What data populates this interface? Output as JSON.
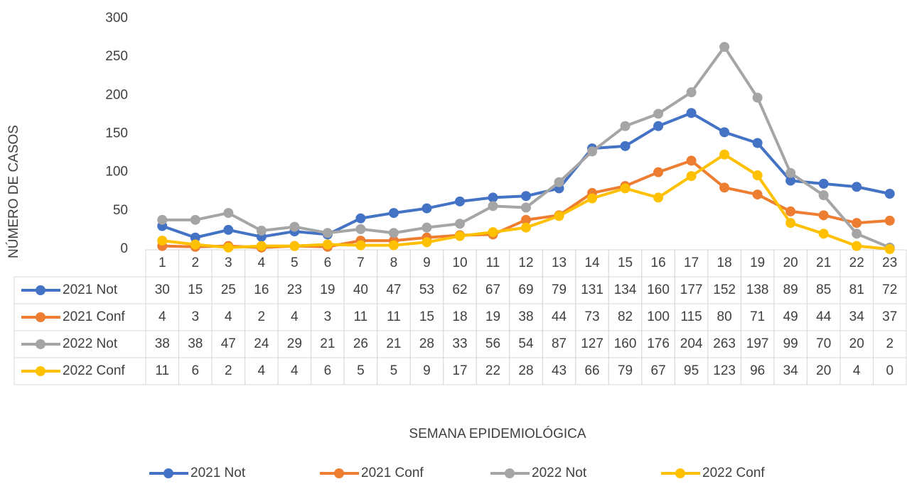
{
  "chart_data": {
    "type": "line",
    "categories": [
      "1",
      "2",
      "3",
      "4",
      "5",
      "6",
      "7",
      "8",
      "9",
      "10",
      "11",
      "12",
      "13",
      "14",
      "15",
      "16",
      "17",
      "18",
      "19",
      "20",
      "21",
      "22",
      "23"
    ],
    "series": [
      {
        "name": "2021 Not",
        "color": "#4472c4",
        "values": [
          30,
          15,
          25,
          16,
          23,
          19,
          40,
          47,
          53,
          62,
          67,
          69,
          79,
          131,
          134,
          160,
          177,
          152,
          138,
          89,
          85,
          81,
          72
        ]
      },
      {
        "name": "2021 Conf",
        "color": "#ed7d31",
        "values": [
          4,
          3,
          4,
          2,
          4,
          3,
          11,
          11,
          15,
          18,
          19,
          38,
          44,
          73,
          82,
          100,
          115,
          80,
          71,
          49,
          44,
          34,
          37
        ]
      },
      {
        "name": "2022 Not",
        "color": "#a5a5a5",
        "values": [
          38,
          38,
          47,
          24,
          29,
          21,
          26,
          21,
          28,
          33,
          56,
          54,
          87,
          127,
          160,
          176,
          204,
          263,
          197,
          99,
          70,
          20,
          2
        ]
      },
      {
        "name": "2022 Conf",
        "color": "#ffc000",
        "values": [
          11,
          6,
          2,
          4,
          4,
          6,
          5,
          5,
          9,
          17,
          22,
          28,
          43,
          66,
          79,
          67,
          95,
          123,
          96,
          34,
          20,
          4,
          0
        ]
      }
    ],
    "x_label": "SEMANA EPIDEMIOLÓGICA",
    "y_label": "NÚMERO DE CASOS",
    "ylim": [
      0,
      300
    ],
    "yticks": [
      0,
      50,
      100,
      150,
      200,
      250,
      300
    ],
    "grid": false,
    "legend": "bottom",
    "data_table": true
  }
}
